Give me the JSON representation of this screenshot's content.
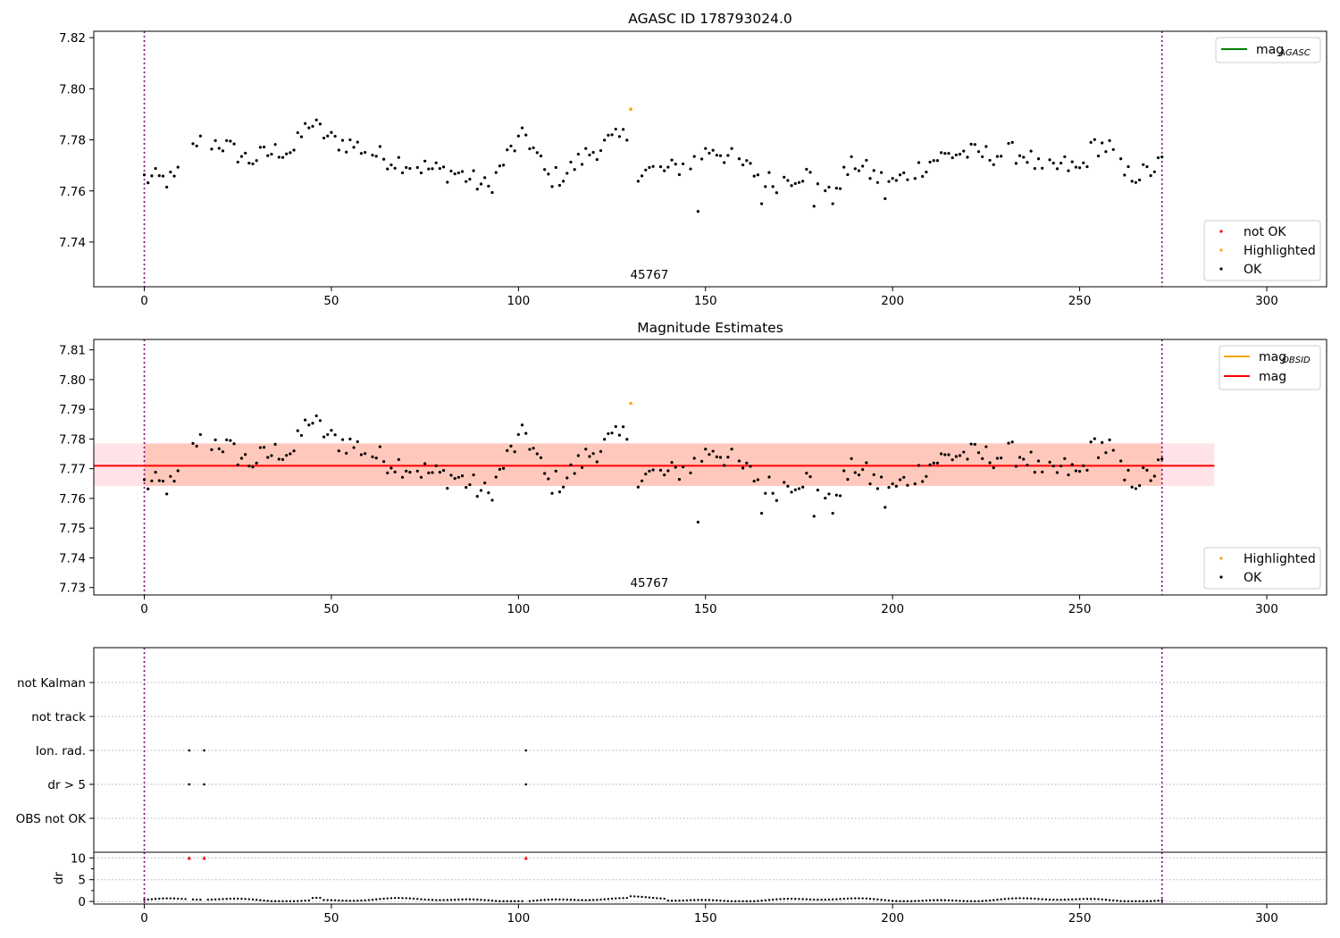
{
  "panels": {
    "top": {
      "title": "AGASC ID 178793024.0",
      "annotation": "45767",
      "x_ticks": [
        0,
        50,
        100,
        150,
        200,
        250,
        300
      ],
      "y_ticks": [
        7.74,
        7.76,
        7.78,
        7.8,
        7.82
      ],
      "y_tick_labels": [
        "7.74",
        "7.76",
        "7.78",
        "7.80",
        "7.82"
      ],
      "legend_lines": [
        {
          "label": "mag",
          "sub": "AGASC",
          "color": "#008000"
        }
      ],
      "legend_markers": [
        {
          "label": "not OK",
          "color": "#ff0000"
        },
        {
          "label": "Highlighted",
          "color": "#ffa500"
        },
        {
          "label": "OK",
          "color": "#000000"
        }
      ]
    },
    "middle": {
      "title": "Magnitude Estimates",
      "annotation": "45767",
      "x_ticks": [
        0,
        50,
        100,
        150,
        200,
        250,
        300
      ],
      "y_ticks": [
        7.73,
        7.74,
        7.75,
        7.76,
        7.77,
        7.78,
        7.79,
        7.8,
        7.81
      ],
      "y_tick_labels": [
        "7.73",
        "7.74",
        "7.75",
        "7.76",
        "7.77",
        "7.78",
        "7.79",
        "7.80",
        "7.81"
      ],
      "legend_lines": [
        {
          "label": "mag",
          "sub": "OBSID",
          "color": "#ffa500"
        },
        {
          "label": "mag",
          "sub": "",
          "color": "#ff0000"
        }
      ],
      "legend_markers": [
        {
          "label": "Highlighted",
          "color": "#ffa500"
        },
        {
          "label": "OK",
          "color": "#000000"
        }
      ]
    },
    "flags": {
      "categories": [
        "not Kalman",
        "not track",
        "Ion. rad.",
        "dr > 5",
        "OBS not OK"
      ]
    },
    "dr": {
      "ylabel": "dr",
      "y_ticks": [
        0,
        5,
        10
      ],
      "x_ticks": [
        0,
        50,
        100,
        150,
        200,
        250,
        300
      ]
    }
  },
  "chart_data": [
    {
      "type": "scatter",
      "title": "AGASC ID 178793024.0",
      "xlim": [
        -13.5,
        316
      ],
      "ylim": [
        7.7225,
        7.8225
      ],
      "vertical_lines_x": [
        0,
        272
      ],
      "series": [
        {
          "name": "OK",
          "x": [],
          "y": []
        },
        {
          "name": "Highlighted",
          "x": [
            130
          ],
          "y": [
            7.792
          ]
        }
      ],
      "text_annotation": "45767"
    },
    {
      "type": "scatter",
      "title": "Magnitude Estimates",
      "xlim": [
        -13.5,
        316
      ],
      "ylim": [
        7.7275,
        7.8135
      ],
      "vertical_lines_x": [
        0,
        272
      ],
      "mag": 7.771,
      "band_inner": [
        7.7642,
        7.7785
      ],
      "band_outer_xmax": 286,
      "series": [
        {
          "name": "OK",
          "x": [],
          "y": []
        },
        {
          "name": "Highlighted",
          "x": [
            130
          ],
          "y": [
            7.792
          ]
        }
      ],
      "text_annotation": "45767"
    },
    {
      "type": "scatter",
      "categories": [
        "not Kalman",
        "not track",
        "Ion. rad.",
        "dr > 5",
        "OBS not OK"
      ],
      "xlim": [
        -13.5,
        316
      ],
      "vertical_lines_x": [
        0,
        272
      ],
      "points": [
        {
          "category": "Ion. rad.",
          "x": [
            12,
            16,
            102
          ]
        },
        {
          "category": "dr > 5",
          "x": [
            12,
            16,
            102
          ]
        }
      ]
    },
    {
      "type": "scatter",
      "ylabel": "dr",
      "xlim": [
        -13.5,
        316
      ],
      "ylim": [
        -0.6,
        11.3
      ],
      "vertical_lines_x": [
        0,
        272
      ],
      "clipped_x": [
        12,
        16,
        102
      ],
      "series": [
        {
          "name": "dr",
          "x": [],
          "y": []
        }
      ]
    }
  ]
}
